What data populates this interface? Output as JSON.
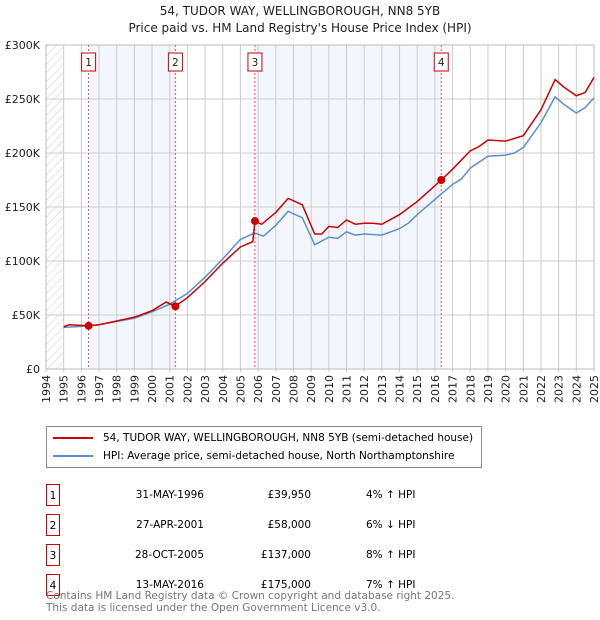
{
  "title": "54, TUDOR WAY, WELLINGBOROUGH, NN8 5YB",
  "subtitle": "Price paid vs. HM Land Registry's House Price Index (HPI)",
  "chart_data": {
    "type": "line",
    "xlim": [
      1994,
      2025
    ],
    "ylim": [
      0,
      300000
    ],
    "yticks": [
      {
        "v": 0,
        "label": "£0"
      },
      {
        "v": 50000,
        "label": "£50K"
      },
      {
        "v": 100000,
        "label": "£100K"
      },
      {
        "v": 150000,
        "label": "£150K"
      },
      {
        "v": 200000,
        "label": "£200K"
      },
      {
        "v": 250000,
        "label": "£250K"
      },
      {
        "v": 300000,
        "label": "£300K"
      }
    ],
    "xticks": [
      "1994",
      "1995",
      "1996",
      "1997",
      "1998",
      "1999",
      "2000",
      "2001",
      "2002",
      "2003",
      "2004",
      "2005",
      "2006",
      "2007",
      "2008",
      "2009",
      "2010",
      "2011",
      "2012",
      "2013",
      "2014",
      "2015",
      "2016",
      "2017",
      "2018",
      "2019",
      "2020",
      "2021",
      "2022",
      "2023",
      "2024",
      "2025"
    ],
    "series": [
      {
        "name": "54, TUDOR WAY, WELLINGBOROUGH, NN8 5YB (semi-detached house)",
        "color": "#cc0000",
        "x": [
          1995,
          1995.3,
          1996.4,
          1997,
          1998,
          1999,
          2000,
          2000.8,
          2001.3,
          2002,
          2003,
          2004,
          2005,
          2005.7,
          2005.82,
          2006.2,
          2007,
          2007.7,
          2008.5,
          2009.2,
          2009.6,
          2010,
          2010.5,
          2011,
          2011.5,
          2012,
          2012.5,
          2013,
          2014,
          2015,
          2016.36,
          2017,
          2018,
          2018.5,
          2019,
          2020,
          2021,
          2022,
          2022.8,
          2023.3,
          2024,
          2024.5,
          2025
        ],
        "y": [
          39000,
          41000,
          40000,
          41000,
          44500,
          48000,
          54000,
          62000,
          58000,
          66000,
          81000,
          98000,
          113000,
          118000,
          137000,
          134000,
          145000,
          158000,
          152000,
          125000,
          125000,
          132000,
          131000,
          138000,
          134000,
          135000,
          135000,
          134000,
          143000,
          155000,
          175000,
          185000,
          202000,
          206000,
          212000,
          211000,
          216000,
          240000,
          268000,
          261000,
          253000,
          256000,
          270000
        ]
      },
      {
        "name": "HPI: Average price, semi-detached house, North Northamptonshire",
        "color": "#5b8fd0",
        "x": [
          1995,
          1996,
          1997,
          1998,
          1999,
          2000,
          2001,
          2002,
          2003,
          2004,
          2005,
          2005.8,
          2006.3,
          2007,
          2007.7,
          2008.5,
          2009.2,
          2010,
          2010.5,
          2011,
          2011.5,
          2012,
          2013,
          2014,
          2014.5,
          2015,
          2016,
          2017,
          2017.5,
          2018,
          2019,
          2020,
          2020.5,
          2021,
          2022,
          2022.8,
          2023.3,
          2024,
          2024.5,
          2025
        ],
        "y": [
          38500,
          39500,
          41000,
          44000,
          47000,
          53000,
          60000,
          70000,
          85000,
          102000,
          120000,
          126000,
          123000,
          133000,
          146000,
          140000,
          115000,
          122000,
          121000,
          127000,
          124000,
          125000,
          124000,
          130000,
          135000,
          143000,
          157000,
          171000,
          176000,
          186000,
          197000,
          198000,
          200000,
          205000,
          228000,
          252000,
          245000,
          237000,
          242000,
          251000
        ]
      }
    ],
    "sales": [
      {
        "n": "1",
        "x": 1996.41,
        "y": 39950,
        "date": "31-MAY-1996",
        "price": "£39,950",
        "hpi": "4% ↑ HPI"
      },
      {
        "n": "2",
        "x": 2001.32,
        "y": 58000,
        "date": "27-APR-2001",
        "price": "£58,000",
        "hpi": "6% ↓ HPI"
      },
      {
        "n": "3",
        "x": 2005.82,
        "y": 137000,
        "date": "28-OCT-2005",
        "price": "£137,000",
        "hpi": "8% ↑ HPI"
      },
      {
        "n": "4",
        "x": 2016.36,
        "y": 175000,
        "date": "13-MAY-2016",
        "price": "£175,000",
        "hpi": "7% ↑ HPI"
      }
    ]
  },
  "footer": [
    "Contains HM Land Registry data © Crown copyright and database right 2025.",
    "This data is licensed under the Open Government Licence v3.0."
  ]
}
